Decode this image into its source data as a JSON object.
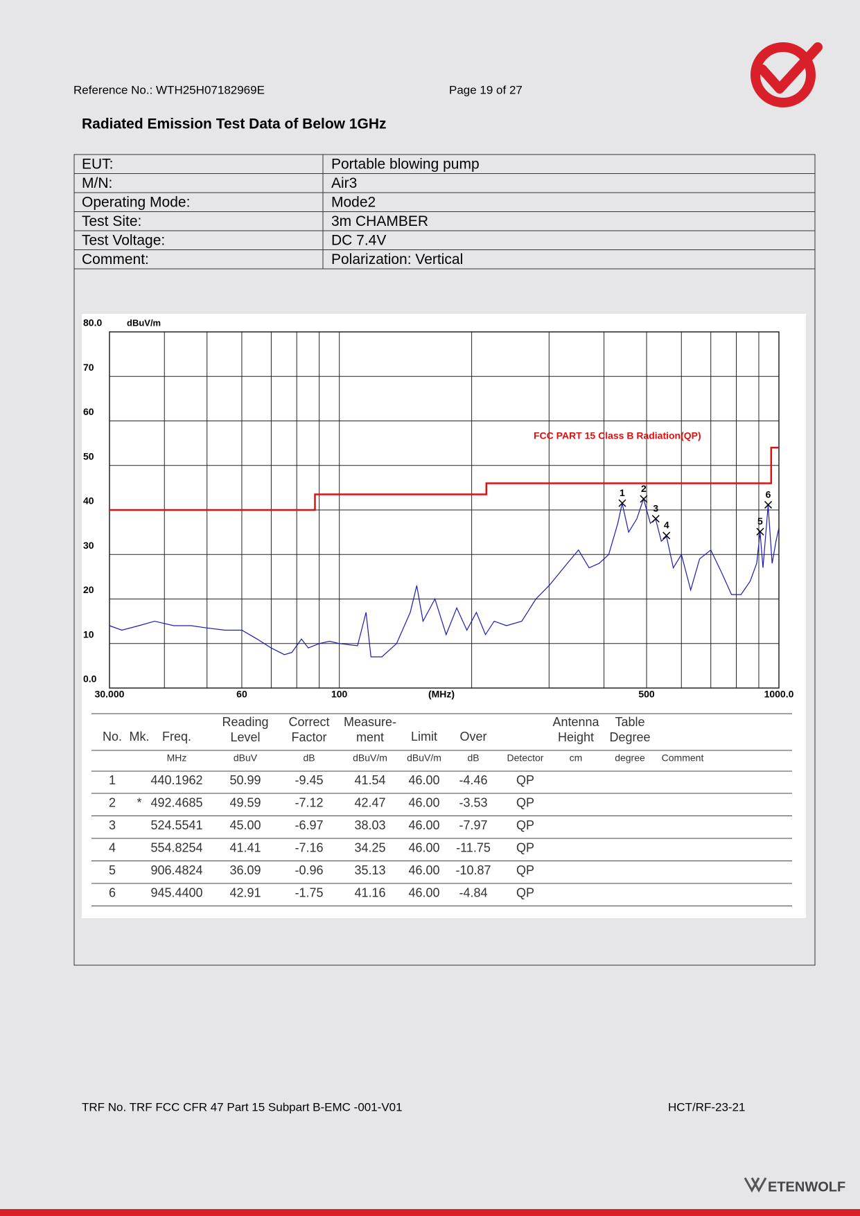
{
  "header": {
    "reference": "Reference No.: WTH25H07182969E",
    "page": "Page 19 of 27"
  },
  "title": "Radiated Emission Test Data of Below 1GHz",
  "info": [
    [
      "EUT:",
      "Portable blowing pump"
    ],
    [
      "M/N:",
      "Air3"
    ],
    [
      "Operating Mode:",
      "Mode2"
    ],
    [
      "Test Site:",
      "3m CHAMBER"
    ],
    [
      "Test Voltage:",
      "DC 7.4V"
    ],
    [
      "Comment:",
      "Polarization: Vertical"
    ]
  ],
  "chart_data": {
    "type": "line",
    "xscale": "log",
    "ylabel": "dBuV/m",
    "xlabel": "(MHz)",
    "xlim": [
      30,
      1000
    ],
    "ylim": [
      0,
      80
    ],
    "xticks": [
      {
        "value": 30,
        "label": "30.000"
      },
      60,
      100,
      500,
      {
        "value": 1000,
        "label": "1000.0"
      }
    ],
    "xgrid": [
      30,
      40,
      50,
      60,
      70,
      80,
      90,
      100,
      200,
      300,
      400,
      500,
      600,
      700,
      800,
      900,
      1000
    ],
    "yticks": [
      {
        "value": 0,
        "label": "0.0"
      },
      10,
      20,
      30,
      40,
      50,
      60,
      70,
      {
        "value": 80,
        "label": "80.0"
      }
    ],
    "grid": true,
    "series": [
      {
        "name": "FCC PART 15 Class B Radiation(QP)",
        "color": "#e01010",
        "x": [
          30,
          88,
          88,
          216,
          216,
          960,
          960,
          1000
        ],
        "values": [
          40,
          40,
          43.5,
          43.5,
          46,
          46,
          54,
          54
        ]
      },
      {
        "color": "#1a1ab8",
        "x": [
          30,
          32,
          35,
          38,
          42,
          46,
          50,
          55,
          60,
          65,
          70,
          75,
          78,
          82,
          85,
          90,
          95,
          100,
          110,
          115,
          118,
          125,
          135,
          145,
          150,
          155,
          165,
          175,
          185,
          195,
          205,
          215,
          225,
          240,
          260,
          280,
          300,
          330,
          350,
          370,
          390,
          410,
          430,
          440,
          455,
          475,
          492,
          510,
          524,
          540,
          555,
          575,
          600,
          630,
          660,
          700,
          740,
          780,
          820,
          860,
          890,
          906,
          920,
          945,
          965,
          985,
          1000
        ],
        "values": [
          14,
          13,
          14,
          15,
          14,
          14,
          13.5,
          13,
          13,
          11,
          9,
          7.5,
          8,
          11,
          9,
          10,
          10.5,
          10,
          9.5,
          17,
          7,
          7,
          10,
          17,
          23,
          15,
          20,
          12,
          18,
          13,
          17,
          12,
          15,
          14,
          15,
          20,
          23,
          28,
          31,
          27,
          28,
          30,
          37,
          41.5,
          35,
          38,
          42.5,
          37,
          38,
          33,
          34,
          27,
          30,
          22,
          29,
          31,
          26,
          21,
          21,
          24,
          28,
          35,
          27,
          41,
          28,
          33,
          36
        ]
      }
    ],
    "markers": {
      "labels": [
        "1",
        "2",
        "3",
        "4",
        "5",
        "6"
      ],
      "x": [
        440.1962,
        492.4685,
        524.5541,
        554.8254,
        906.4824,
        945.44
      ],
      "y": [
        41.54,
        42.47,
        38.03,
        34.25,
        35.13,
        41.16
      ]
    }
  },
  "table": {
    "columns": [
      {
        "title": [
          "No."
        ]
      },
      {
        "title": [
          "Mk."
        ]
      },
      {
        "title": [
          "Freq."
        ],
        "unit": "MHz"
      },
      {
        "title": [
          "Reading",
          "Level"
        ],
        "unit": "dBuV"
      },
      {
        "title": [
          "Correct",
          "Factor"
        ],
        "unit": "dB"
      },
      {
        "title": [
          "Measure-",
          "ment"
        ],
        "unit": "dBuV/m"
      },
      {
        "title": [
          "Limit"
        ],
        "unit": "dBuV/m"
      },
      {
        "title": [
          "Over"
        ],
        "unit": "dB"
      },
      {
        "unit": "Detector"
      },
      {
        "title": [
          "Antenna",
          "Height"
        ],
        "unit": "cm"
      },
      {
        "title": [
          "Table",
          "Degree"
        ],
        "unit": "degree"
      },
      {
        "unit": "Comment"
      }
    ],
    "rows": [
      [
        "1",
        null,
        "440.1962",
        "50.99",
        "-9.45",
        "41.54",
        "46.00",
        "-4.46",
        "QP"
      ],
      [
        "2",
        "*",
        "492.4685",
        "49.59",
        "-7.12",
        "42.47",
        "46.00",
        "-3.53",
        "QP"
      ],
      [
        "3",
        null,
        "524.5541",
        "45.00",
        "-6.97",
        "38.03",
        "46.00",
        "-7.97",
        "QP"
      ],
      [
        "4",
        null,
        "554.8254",
        "41.41",
        "-7.16",
        "34.25",
        "46.00",
        "-11.75",
        "QP"
      ],
      [
        "5",
        null,
        "906.4824",
        "36.09",
        "-0.96",
        "35.13",
        "46.00",
        "-10.87",
        "QP"
      ],
      [
        "6",
        null,
        "945.4400",
        "42.91",
        "-1.75",
        "41.16",
        "46.00",
        "-4.84",
        "QP"
      ]
    ]
  },
  "footer": {
    "trf": "TRF No. TRF FCC CFR 47 Part 15 Subpart B-EMC -001-V01",
    "code": "HCT/RF-23-21",
    "brand": "ETENWOLF"
  }
}
